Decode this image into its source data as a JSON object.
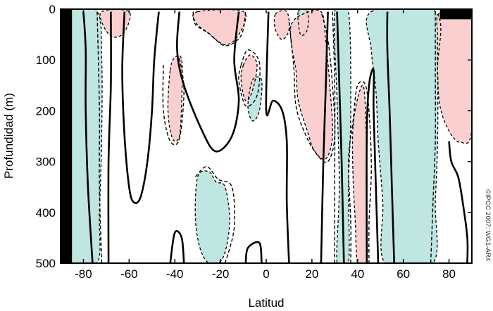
{
  "chart_data": {
    "type": "contour",
    "xlabel": "Latitud",
    "ylabel": "Profundidad (m)",
    "xlim": [
      -90,
      90
    ],
    "ylim": [
      0,
      500
    ],
    "y_inverted": true,
    "x_ticks": [
      -80,
      -60,
      -40,
      -20,
      0,
      20,
      40,
      60,
      80
    ],
    "y_ticks": [
      0,
      100,
      200,
      300,
      400,
      500
    ],
    "credit": "©IPCC 2007: WG1-AR4",
    "colors": {
      "positive": "#f9cfcf",
      "negative": "#bfe6e0",
      "mask": "#000000",
      "contour": "#000000"
    },
    "positive_regions": [
      {
        "name": "tropical-north-warm",
        "points": [
          [
            11,
            30
          ],
          [
            16,
            10
          ],
          [
            24,
            5
          ],
          [
            26,
            60
          ],
          [
            28,
            160
          ],
          [
            29,
            250
          ],
          [
            26,
            295
          ],
          [
            21,
            278
          ],
          [
            18,
            240
          ],
          [
            14,
            180
          ],
          [
            13,
            120
          ],
          [
            11,
            70
          ]
        ]
      },
      {
        "name": "arctic-warm",
        "points": [
          [
            75,
            12
          ],
          [
            80,
            8
          ],
          [
            90,
            8
          ],
          [
            90,
            235
          ],
          [
            85,
            262
          ],
          [
            80,
            240
          ],
          [
            76,
            190
          ],
          [
            75,
            120
          ],
          [
            75,
            55
          ]
        ]
      },
      {
        "name": "north-40-warm",
        "points": [
          [
            38,
            230
          ],
          [
            41,
            160
          ],
          [
            43,
            165
          ],
          [
            44,
            300
          ],
          [
            44,
            420
          ],
          [
            44,
            500
          ],
          [
            40,
            500
          ],
          [
            39,
            420
          ],
          [
            38,
            330
          ]
        ]
      },
      {
        "name": "south-30-warm",
        "points": [
          [
            -42,
            120
          ],
          [
            -40,
            95
          ],
          [
            -37,
            100
          ],
          [
            -37,
            180
          ],
          [
            -38,
            250
          ],
          [
            -41,
            255
          ],
          [
            -43,
            200
          ]
        ]
      },
      {
        "name": "south-20-surface-warm",
        "points": [
          [
            -30,
            5
          ],
          [
            -10,
            5
          ],
          [
            -12,
            50
          ],
          [
            -18,
            70
          ],
          [
            -26,
            45
          ],
          [
            -31,
            25
          ]
        ]
      },
      {
        "name": "mid-lat-south-warm",
        "points": [
          [
            -10,
            110
          ],
          [
            -7,
            90
          ],
          [
            -4,
            110
          ],
          [
            -6,
            160
          ],
          [
            -9,
            180
          ],
          [
            -11,
            140
          ]
        ]
      },
      {
        "name": "south-70-warm",
        "points": [
          [
            -72,
            5
          ],
          [
            -60,
            5
          ],
          [
            -62,
            45
          ],
          [
            -67,
            55
          ],
          [
            -71,
            35
          ]
        ]
      },
      {
        "name": "equator-north-warm",
        "points": [
          [
            4,
            10
          ],
          [
            9,
            5
          ],
          [
            10,
            40
          ],
          [
            7,
            60
          ],
          [
            4,
            40
          ]
        ]
      }
    ],
    "negative_regions": [
      {
        "name": "antarctic-cold",
        "points": [
          [
            -87,
            5
          ],
          [
            -74,
            5
          ],
          [
            -72,
            100
          ],
          [
            -72,
            250
          ],
          [
            -73,
            400
          ],
          [
            -74,
            500
          ],
          [
            -87,
            500
          ]
        ]
      },
      {
        "name": "north-60-cold",
        "points": [
          [
            46,
            5
          ],
          [
            74,
            5
          ],
          [
            75,
            120
          ],
          [
            75,
            260
          ],
          [
            74,
            380
          ],
          [
            73,
            500
          ],
          [
            52,
            500
          ],
          [
            51,
            380
          ],
          [
            49,
            260
          ],
          [
            48,
            160
          ],
          [
            46,
            80
          ]
        ]
      },
      {
        "name": "north-35-cold",
        "points": [
          [
            30,
            5
          ],
          [
            36,
            5
          ],
          [
            37,
            200
          ],
          [
            36,
            350
          ],
          [
            36,
            500
          ],
          [
            31,
            500
          ],
          [
            32,
            350
          ],
          [
            31,
            180
          ]
        ]
      },
      {
        "name": "south-25-cold",
        "points": [
          [
            -30,
            330
          ],
          [
            -25,
            320
          ],
          [
            -22,
            340
          ],
          [
            -18,
            350
          ],
          [
            -16,
            420
          ],
          [
            -19,
            490
          ],
          [
            -25,
            500
          ],
          [
            -29,
            470
          ],
          [
            -31,
            410
          ]
        ]
      },
      {
        "name": "south-10-cold",
        "points": [
          [
            -6,
            140
          ],
          [
            -2,
            140
          ],
          [
            -3,
            200
          ],
          [
            -6,
            220
          ],
          [
            -8,
            190
          ]
        ]
      },
      {
        "name": "north-15-cold-surface",
        "points": [
          [
            14,
            5
          ],
          [
            18,
            5
          ],
          [
            18,
            40
          ],
          [
            15,
            50
          ]
        ]
      }
    ],
    "mask_regions": [
      {
        "name": "antarctica-land",
        "points": [
          [
            -90,
            0
          ],
          [
            -85,
            0
          ],
          [
            -85,
            500
          ],
          [
            -90,
            500
          ]
        ]
      },
      {
        "name": "arctic-cap",
        "points": [
          [
            76,
            0
          ],
          [
            90,
            0
          ],
          [
            90,
            20
          ],
          [
            76,
            20
          ]
        ]
      }
    ],
    "solid_contours": [
      [
        [
          -68,
          5
        ],
        [
          -68,
          150
        ],
        [
          -69,
          300
        ],
        [
          -69,
          500
        ]
      ],
      [
        [
          -62,
          5
        ],
        [
          -63,
          120
        ],
        [
          -62,
          250
        ],
        [
          -60,
          350
        ],
        [
          -58,
          380
        ],
        [
          -55,
          370
        ],
        [
          -52,
          300
        ],
        [
          -50,
          200
        ],
        [
          -49,
          100
        ],
        [
          -47,
          5
        ]
      ],
      [
        [
          -38,
          5
        ],
        [
          -39,
          80
        ],
        [
          -36,
          150
        ],
        [
          -28,
          240
        ],
        [
          -22,
          280
        ],
        [
          -15,
          250
        ],
        [
          -12,
          180
        ],
        [
          -14,
          100
        ],
        [
          -12,
          5
        ]
      ],
      [
        [
          -42,
          500
        ],
        [
          -40,
          440
        ],
        [
          -37,
          450
        ],
        [
          -36,
          500
        ]
      ],
      [
        [
          -9,
          500
        ],
        [
          -8,
          470
        ],
        [
          -3,
          460
        ],
        [
          -2,
          500
        ]
      ],
      [
        [
          10,
          500
        ],
        [
          9,
          380
        ],
        [
          9,
          260
        ],
        [
          7,
          200
        ],
        [
          3,
          180
        ],
        [
          0,
          200
        ],
        [
          1,
          5
        ]
      ],
      [
        [
          27,
          5
        ],
        [
          26,
          160
        ],
        [
          25,
          300
        ],
        [
          24,
          500
        ]
      ],
      [
        [
          34,
          500
        ],
        [
          33,
          300
        ],
        [
          32,
          150
        ],
        [
          31,
          5
        ]
      ],
      [
        [
          44,
          500
        ],
        [
          44,
          250
        ],
        [
          45,
          150
        ],
        [
          47,
          120
        ],
        [
          47,
          200
        ],
        [
          48,
          350
        ],
        [
          49,
          500
        ]
      ],
      [
        [
          53,
          5
        ],
        [
          53,
          80
        ],
        [
          54,
          200
        ],
        [
          55,
          350
        ],
        [
          56,
          500
        ]
      ],
      [
        [
          80,
          260
        ],
        [
          81,
          300
        ],
        [
          84,
          330
        ],
        [
          86,
          380
        ],
        [
          88,
          450
        ],
        [
          88,
          500
        ]
      ],
      [
        [
          -80,
          5
        ],
        [
          -79,
          80
        ],
        [
          -79,
          200
        ],
        [
          -78,
          350
        ],
        [
          -76,
          500
        ]
      ]
    ],
    "dashed_contours": [
      [
        [
          -74,
          5
        ],
        [
          -73,
          200
        ],
        [
          -73,
          350
        ],
        [
          -72,
          500
        ]
      ],
      [
        [
          -45,
          110
        ],
        [
          -45,
          200
        ],
        [
          -42,
          260
        ],
        [
          -38,
          255
        ],
        [
          -36,
          160
        ],
        [
          -38,
          95
        ]
      ],
      [
        [
          -31,
          330
        ],
        [
          -26,
          310
        ],
        [
          -21,
          335
        ],
        [
          -15,
          350
        ],
        [
          -14,
          430
        ],
        [
          -18,
          500
        ]
      ],
      [
        [
          -32,
          5
        ],
        [
          -31,
          30
        ],
        [
          -25,
          48
        ],
        [
          -18,
          72
        ],
        [
          -11,
          52
        ],
        [
          -9,
          5
        ]
      ],
      [
        [
          10,
          25
        ],
        [
          12,
          110
        ],
        [
          13,
          190
        ],
        [
          17,
          245
        ],
        [
          22,
          285
        ],
        [
          27,
          300
        ],
        [
          30,
          250
        ],
        [
          29,
          150
        ],
        [
          27,
          60
        ],
        [
          24,
          5
        ]
      ],
      [
        [
          37,
          500
        ],
        [
          37,
          420
        ],
        [
          36,
          300
        ],
        [
          38,
          220
        ],
        [
          40,
          150
        ],
        [
          44,
          160
        ],
        [
          46,
          300
        ],
        [
          45,
          420
        ],
        [
          45,
          500
        ]
      ],
      [
        [
          74,
          5
        ],
        [
          74,
          120
        ],
        [
          74,
          260
        ],
        [
          73,
          380
        ],
        [
          72,
          500
        ]
      ],
      [
        [
          29,
          5
        ],
        [
          30,
          150
        ],
        [
          30,
          330
        ],
        [
          30,
          500
        ]
      ],
      [
        [
          -11,
          110
        ],
        [
          -8,
          80
        ],
        [
          -3,
          105
        ],
        [
          -4,
          170
        ],
        [
          -9,
          190
        ],
        [
          -12,
          140
        ],
        [
          -11,
          110
        ]
      ]
    ]
  }
}
